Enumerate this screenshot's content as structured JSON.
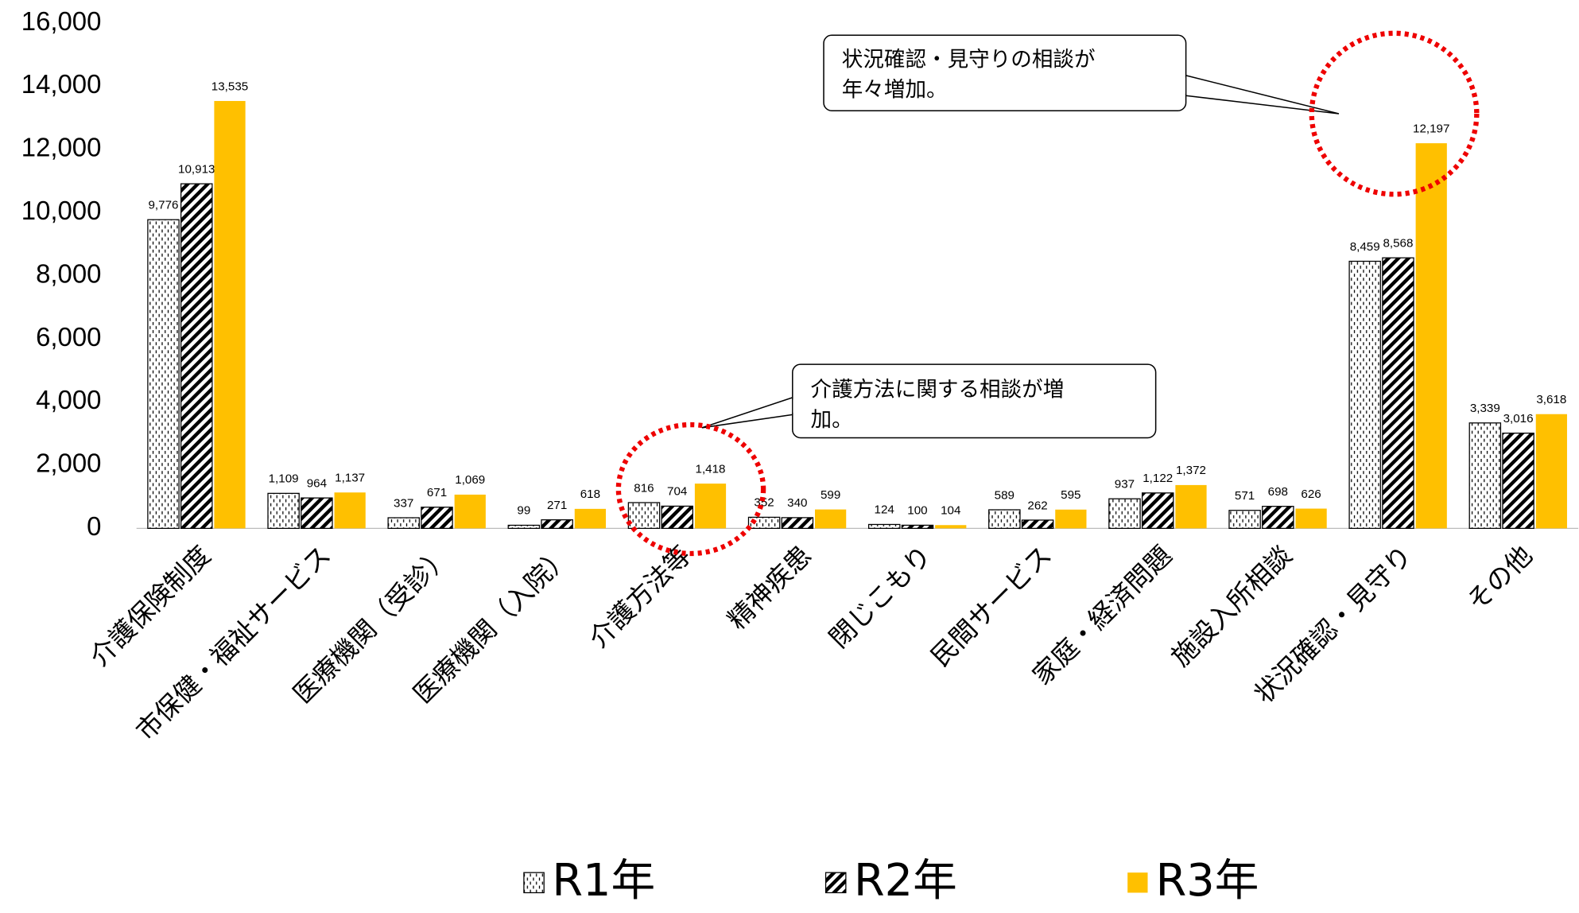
{
  "chart_data": {
    "type": "bar",
    "categories": [
      "介護保険制度",
      "市保健・福祉サービス",
      "医療機関（受診）",
      "医療機関（入院）",
      "介護方法等",
      "精神疾患",
      "閉じこもり",
      "民間サービス",
      "家庭・経済問題",
      "施設入所相談",
      "状況確認・見守り",
      "その他"
    ],
    "series": [
      {
        "name": "R1年",
        "color": "#000000",
        "pattern": "dots",
        "values": [
          9776,
          1109,
          337,
          99,
          816,
          352,
          124,
          589,
          937,
          571,
          8459,
          3339
        ],
        "value_labels": [
          "9,776",
          "1,109",
          "337",
          "99",
          "816",
          "352",
          "124",
          "589",
          "937",
          "571",
          "8,459",
          "3,339"
        ]
      },
      {
        "name": "R2年",
        "color": "#000000",
        "pattern": "hatch",
        "values": [
          10913,
          964,
          671,
          271,
          704,
          340,
          100,
          262,
          1122,
          698,
          8568,
          3016
        ],
        "value_labels": [
          "10,913",
          "964",
          "671",
          "271",
          "704",
          "340",
          "100",
          "262",
          "1,122",
          "698",
          "8,568",
          "3,016"
        ]
      },
      {
        "name": "R3年",
        "color": "#FFC000",
        "values": [
          13535,
          1137,
          1069,
          618,
          1418,
          599,
          104,
          595,
          1372,
          626,
          12197,
          3618
        ],
        "value_labels": [
          "13,535",
          "1,137",
          "1,069",
          "618",
          "1,418",
          "599",
          "104",
          "595",
          "1,372",
          "626",
          "12,197",
          "3,618"
        ]
      }
    ],
    "ylim": [
      0,
      16000
    ],
    "yticks": [
      0,
      {
        "value": 2000,
        "label": "2,000"
      },
      {
        "value": 4000,
        "label": "4,000"
      },
      {
        "value": 6000,
        "label": "6,000"
      },
      {
        "value": 8000,
        "label": "8,000"
      },
      {
        "value": 10000,
        "label": "10,000"
      },
      {
        "value": 12000,
        "label": "12,000"
      },
      {
        "value": 14000,
        "label": "14,000"
      },
      {
        "value": 16000,
        "label": "16,000"
      }
    ],
    "grid": false,
    "legend": "bottom",
    "annotations": [
      {
        "lines": [
          "状況確認・見守りの相談が",
          "年々増加。"
        ]
      },
      {
        "lines": [
          "介護方法に関する相談が増",
          "加。"
        ]
      }
    ]
  }
}
